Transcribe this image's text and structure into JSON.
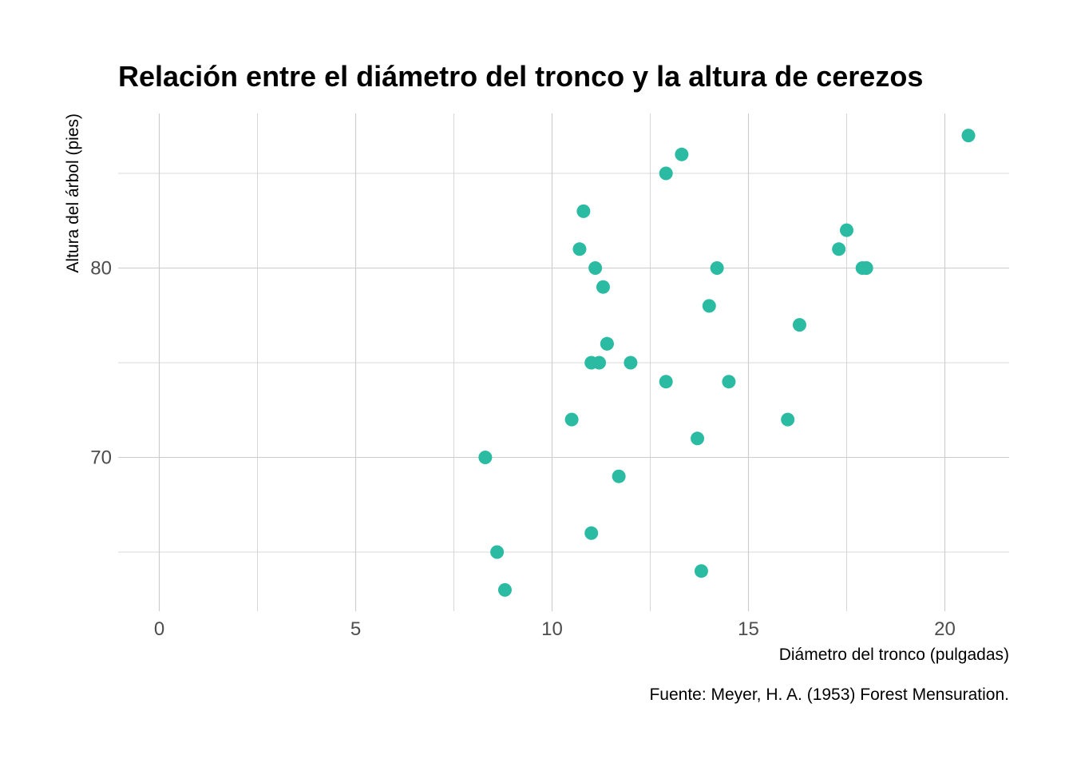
{
  "chart_data": {
    "type": "scatter",
    "title": "Relación entre el diámetro del tronco y la altura de cerezos",
    "xlabel": "Diámetro del tronco (pulgadas)",
    "ylabel": "Altura del árbol (pies)",
    "caption": "Fuente: Meyer, H. A. (1953) Forest Mensuration.",
    "xlim": [
      0,
      21.6
    ],
    "ylim": [
      62.2,
      88.4
    ],
    "x_ticks": [
      0,
      5,
      10,
      15,
      20
    ],
    "y_ticks": [
      70,
      80
    ],
    "x_minor_ticks": [
      2.5,
      7.5,
      12.5,
      17.5
    ],
    "y_minor_ticks": [
      65,
      75,
      85
    ],
    "grid": true,
    "legend": "none",
    "point_color": "#2bbba3",
    "points": [
      {
        "x": 8.3,
        "y": 70
      },
      {
        "x": 8.6,
        "y": 65
      },
      {
        "x": 8.8,
        "y": 63
      },
      {
        "x": 10.5,
        "y": 72
      },
      {
        "x": 10.7,
        "y": 81
      },
      {
        "x": 10.8,
        "y": 83
      },
      {
        "x": 11.0,
        "y": 66
      },
      {
        "x": 11.0,
        "y": 75
      },
      {
        "x": 11.1,
        "y": 80
      },
      {
        "x": 11.2,
        "y": 75
      },
      {
        "x": 11.3,
        "y": 79
      },
      {
        "x": 11.4,
        "y": 76
      },
      {
        "x": 11.4,
        "y": 76
      },
      {
        "x": 11.7,
        "y": 69
      },
      {
        "x": 12.0,
        "y": 75
      },
      {
        "x": 12.9,
        "y": 74
      },
      {
        "x": 12.9,
        "y": 85
      },
      {
        "x": 13.3,
        "y": 86
      },
      {
        "x": 13.7,
        "y": 71
      },
      {
        "x": 13.8,
        "y": 64
      },
      {
        "x": 14.0,
        "y": 78
      },
      {
        "x": 14.2,
        "y": 80
      },
      {
        "x": 14.5,
        "y": 74
      },
      {
        "x": 16.0,
        "y": 72
      },
      {
        "x": 16.3,
        "y": 77
      },
      {
        "x": 17.3,
        "y": 81
      },
      {
        "x": 17.5,
        "y": 82
      },
      {
        "x": 17.9,
        "y": 80
      },
      {
        "x": 18.0,
        "y": 80
      },
      {
        "x": 18.0,
        "y": 80
      },
      {
        "x": 20.6,
        "y": 87
      }
    ]
  }
}
